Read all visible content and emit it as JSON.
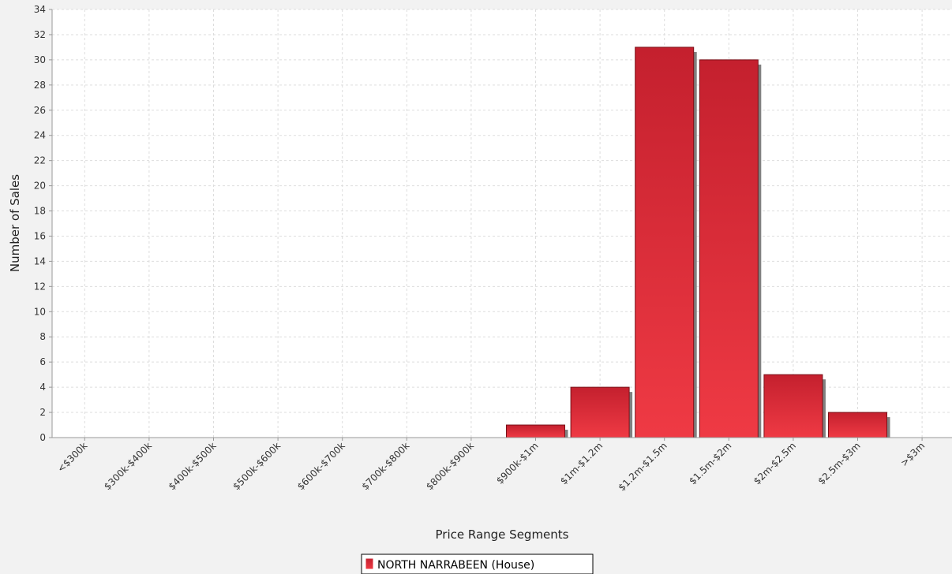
{
  "chart_data": {
    "type": "bar",
    "title": "",
    "xlabel": "Price Range Segments",
    "ylabel": "Number of Sales",
    "categories": [
      "<$300k",
      "$300k-$400k",
      "$400k-$500k",
      "$500k-$600k",
      "$600k-$700k",
      "$700k-$800k",
      "$800k-$900k",
      "$900k-$1m",
      "$1m-$1.2m",
      "$1.2m-$1.5m",
      "$1.5m-$2m",
      "$2m-$2.5m",
      "$2.5m-$3m",
      ">$3m"
    ],
    "series": [
      {
        "name": "NORTH NARRABEEN (House)",
        "values": [
          0,
          0,
          0,
          0,
          0,
          0,
          0,
          1,
          4,
          31,
          30,
          5,
          2,
          0
        ]
      }
    ],
    "ylim": [
      0,
      34
    ],
    "yticks": [
      0,
      2,
      4,
      6,
      8,
      10,
      12,
      14,
      16,
      18,
      20,
      22,
      24,
      26,
      28,
      30,
      32,
      34
    ],
    "grid": true,
    "legend_position": "bottom",
    "colors": {
      "bar_top": "#c4202e",
      "bar_bottom": "#ef3a44",
      "shadow": "#808080",
      "grid": "#dddddd",
      "plot_bg": "#ffffff",
      "page_bg": "#f2f2f2"
    }
  }
}
